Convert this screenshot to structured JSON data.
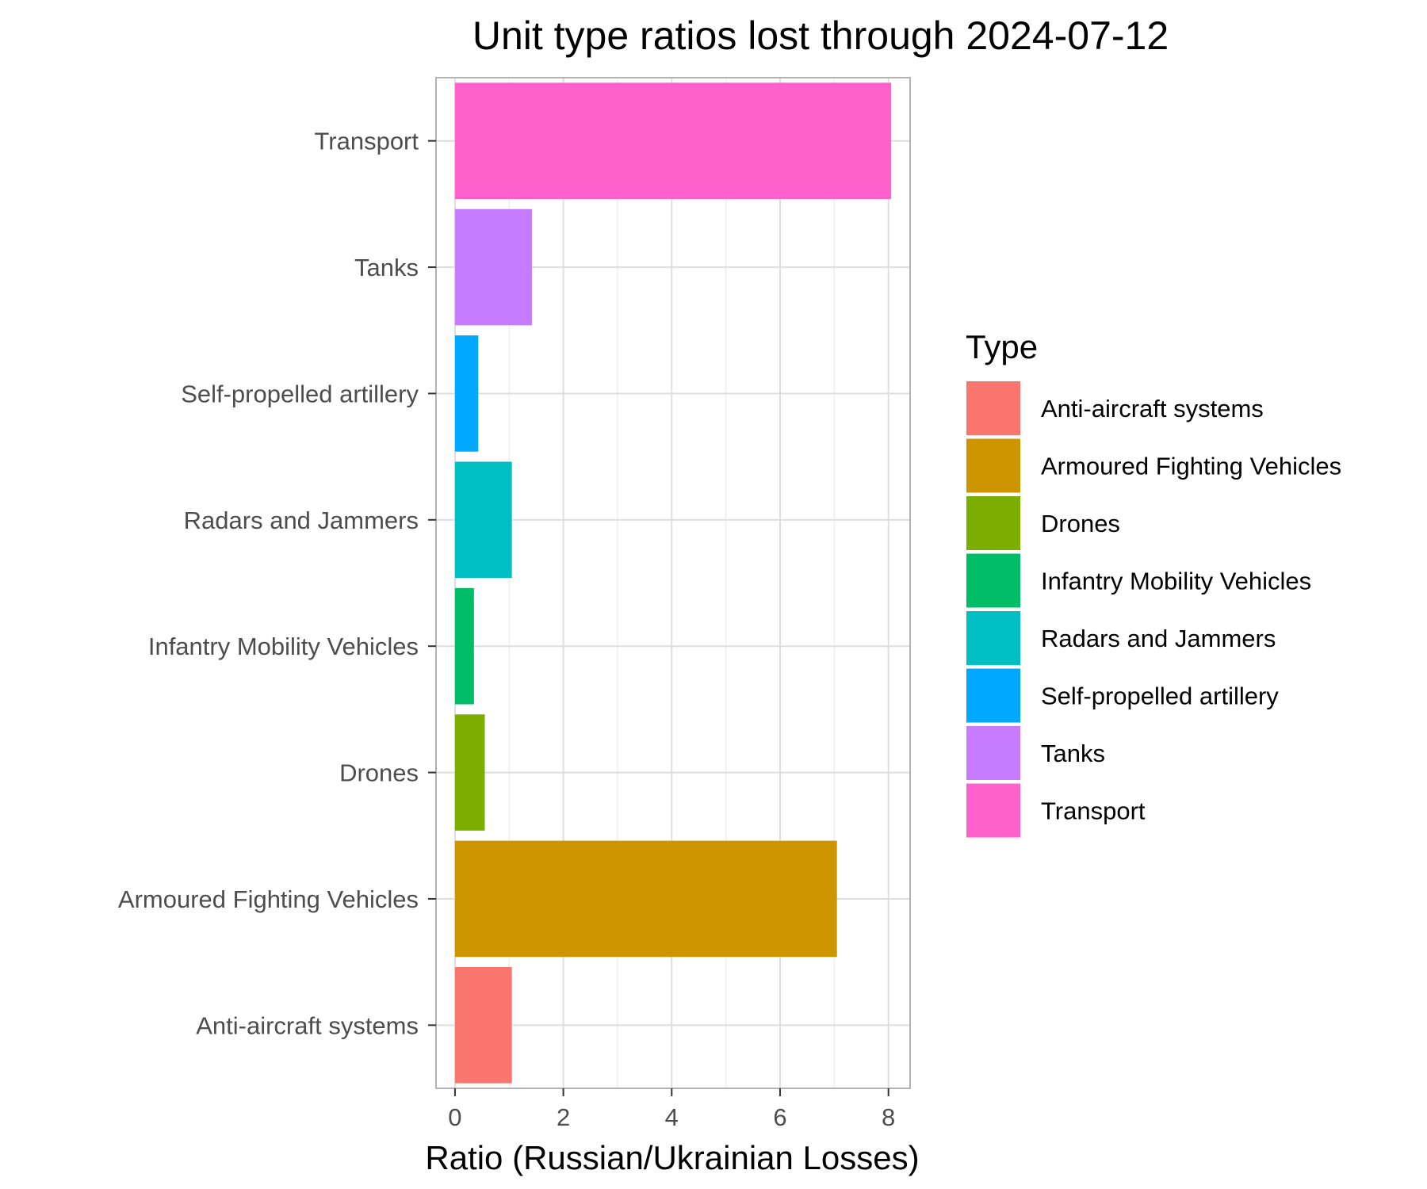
{
  "chart_data": {
    "type": "bar",
    "orientation": "horizontal",
    "title": "Unit type ratios lost through 2024-07-12",
    "xlabel": "Ratio (Russian/Ukrainian Losses)",
    "ylabel": "",
    "xlim": [
      -0.35,
      8.4
    ],
    "x_ticks": [
      0,
      2,
      4,
      6,
      8
    ],
    "grid": true,
    "categories": [
      "Anti-aircraft systems",
      "Armoured Fighting Vehicles",
      "Drones",
      "Infantry Mobility Vehicles",
      "Radars and Jammers",
      "Self-propelled artillery",
      "Tanks",
      "Transport"
    ],
    "values": [
      1.05,
      7.05,
      0.55,
      0.35,
      1.05,
      0.43,
      1.42,
      8.05
    ],
    "colors": [
      "#F8766D",
      "#CD9600",
      "#7CAE00",
      "#00BE67",
      "#00BFC4",
      "#00A9FF",
      "#C77CFF",
      "#FF61CC"
    ],
    "legend": {
      "title": "Type",
      "position": "right",
      "entries": [
        "Anti-aircraft systems",
        "Armoured Fighting Vehicles",
        "Drones",
        "Infantry Mobility Vehicles",
        "Radars and Jammers",
        "Self-propelled artillery",
        "Tanks",
        "Transport"
      ]
    }
  }
}
